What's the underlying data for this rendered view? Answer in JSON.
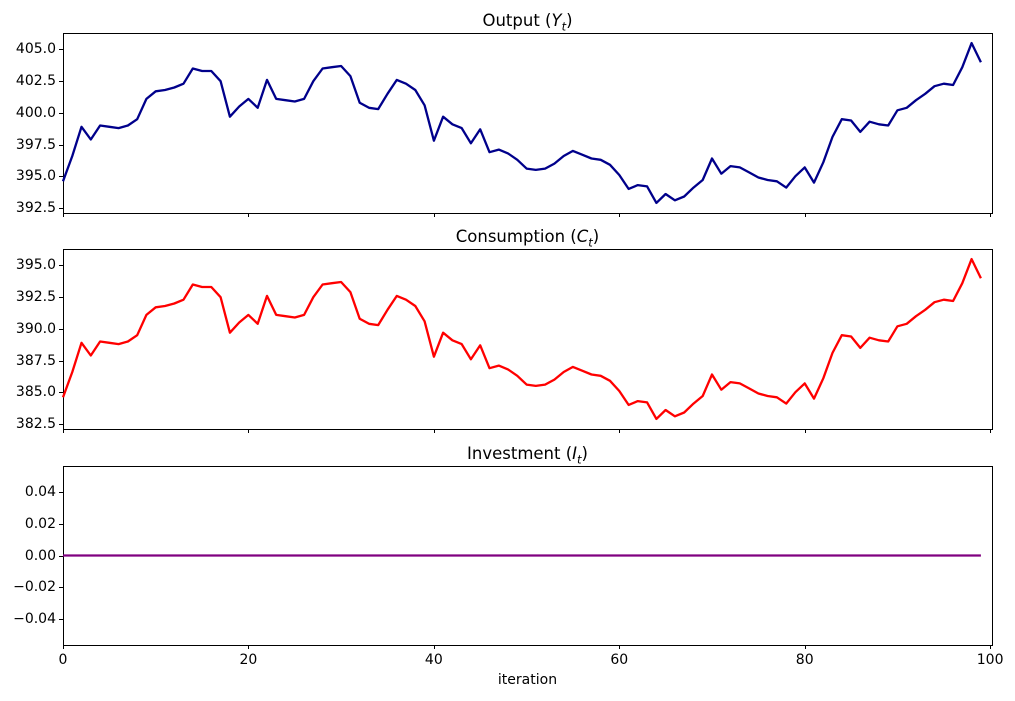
{
  "figure": {
    "background": "#ffffff",
    "spine_color": "#000000"
  },
  "xlabel": "iteration",
  "chart_data": [
    {
      "type": "line",
      "title": {
        "prefix": "Output (",
        "var": "Y",
        "sub": "t",
        "suffix": ")"
      },
      "grid": false,
      "xlim": [
        0,
        100.2
      ],
      "ylim": [
        392.1,
        406.3
      ],
      "yticks": {
        "values": [
          392.5,
          395.0,
          397.5,
          400.0,
          402.5,
          405.0
        ],
        "labels": [
          "392.5",
          "395.0",
          "397.5",
          "400.0",
          "402.5",
          "405.0"
        ]
      },
      "xticks": {
        "values": [
          0,
          20,
          40,
          60,
          80,
          100
        ],
        "labels": [
          "0",
          "20",
          "40",
          "60",
          "80",
          "100"
        ],
        "show_labels": false
      },
      "series": [
        {
          "name": "output-series",
          "color": "#00008b",
          "values": [
            394.6,
            396.6,
            398.9,
            397.9,
            399.0,
            398.9,
            398.8,
            399.0,
            399.5,
            401.1,
            401.7,
            401.8,
            402.0,
            402.3,
            403.5,
            403.3,
            403.3,
            402.5,
            399.7,
            400.5,
            401.1,
            400.4,
            402.6,
            401.1,
            401.0,
            400.9,
            401.1,
            402.5,
            403.5,
            403.6,
            403.7,
            402.9,
            400.8,
            400.4,
            400.3,
            401.5,
            402.6,
            402.3,
            401.8,
            400.6,
            397.8,
            399.7,
            399.1,
            398.8,
            397.6,
            398.7,
            396.9,
            397.1,
            396.8,
            396.3,
            395.6,
            395.5,
            395.6,
            396.0,
            396.6,
            397.0,
            396.7,
            396.4,
            396.3,
            395.9,
            395.1,
            394.0,
            394.3,
            394.2,
            392.9,
            393.6,
            393.1,
            393.4,
            394.1,
            394.7,
            396.4,
            395.2,
            395.8,
            395.7,
            395.3,
            394.9,
            394.7,
            394.6,
            394.1,
            395.0,
            395.7,
            394.5,
            396.1,
            398.1,
            399.5,
            399.4,
            398.5,
            399.3,
            399.1,
            399.0,
            400.2,
            400.4,
            401.0,
            401.5,
            402.1,
            402.3,
            402.2,
            403.6,
            405.5,
            404.0
          ]
        }
      ]
    },
    {
      "type": "line",
      "title": {
        "prefix": "Consumption (",
        "var": "C",
        "sub": "t",
        "suffix": ")"
      },
      "grid": false,
      "xlim": [
        0,
        100.2
      ],
      "ylim": [
        382.1,
        396.3
      ],
      "yticks": {
        "values": [
          382.5,
          385.0,
          387.5,
          390.0,
          392.5,
          395.0
        ],
        "labels": [
          "382.5",
          "385.0",
          "387.5",
          "390.0",
          "392.5",
          "395.0"
        ]
      },
      "xticks": {
        "values": [
          0,
          20,
          40,
          60,
          80,
          100
        ],
        "labels": [
          "0",
          "20",
          "40",
          "60",
          "80",
          "100"
        ],
        "show_labels": false
      },
      "series": [
        {
          "name": "consumption-series",
          "color": "#ff0000",
          "values": [
            384.6,
            386.6,
            388.9,
            387.9,
            389.0,
            388.9,
            388.8,
            389.0,
            389.5,
            391.1,
            391.7,
            391.8,
            392.0,
            392.3,
            393.5,
            393.3,
            393.3,
            392.5,
            389.7,
            390.5,
            391.1,
            390.4,
            392.6,
            391.1,
            391.0,
            390.9,
            391.1,
            392.5,
            393.5,
            393.6,
            393.7,
            392.9,
            390.8,
            390.4,
            390.3,
            391.5,
            392.6,
            392.3,
            391.8,
            390.6,
            387.8,
            389.7,
            389.1,
            388.8,
            387.6,
            388.7,
            386.9,
            387.1,
            386.8,
            386.3,
            385.6,
            385.5,
            385.6,
            386.0,
            386.6,
            387.0,
            386.7,
            386.4,
            386.3,
            385.9,
            385.1,
            384.0,
            384.3,
            384.2,
            382.9,
            383.6,
            383.1,
            383.4,
            384.1,
            384.7,
            386.4,
            385.2,
            385.8,
            385.7,
            385.3,
            384.9,
            384.7,
            384.6,
            384.1,
            385.0,
            385.7,
            384.5,
            386.1,
            388.1,
            389.5,
            389.4,
            388.5,
            389.3,
            389.1,
            389.0,
            390.2,
            390.4,
            391.0,
            391.5,
            392.1,
            392.3,
            392.2,
            393.6,
            395.5,
            394.0
          ]
        }
      ]
    },
    {
      "type": "line",
      "title": {
        "prefix": "Investment (",
        "var": "I",
        "sub": "t",
        "suffix": ")"
      },
      "grid": false,
      "constant": 0.0,
      "xlim": [
        0,
        100.2
      ],
      "ylim": [
        -0.056,
        0.056
      ],
      "yticks": {
        "values": [
          -0.04,
          -0.02,
          0.0,
          0.02,
          0.04
        ],
        "labels": [
          "−0.04",
          "−0.02",
          "0.00",
          "0.02",
          "0.04"
        ]
      },
      "xticks": {
        "values": [
          0,
          20,
          40,
          60,
          80,
          100
        ],
        "labels": [
          "0",
          "20",
          "40",
          "60",
          "80",
          "100"
        ],
        "show_labels": true
      },
      "series": [
        {
          "name": "investment-series",
          "color": "#800080",
          "x": [
            0,
            99
          ],
          "values": [
            0.0,
            0.0
          ]
        }
      ]
    }
  ]
}
